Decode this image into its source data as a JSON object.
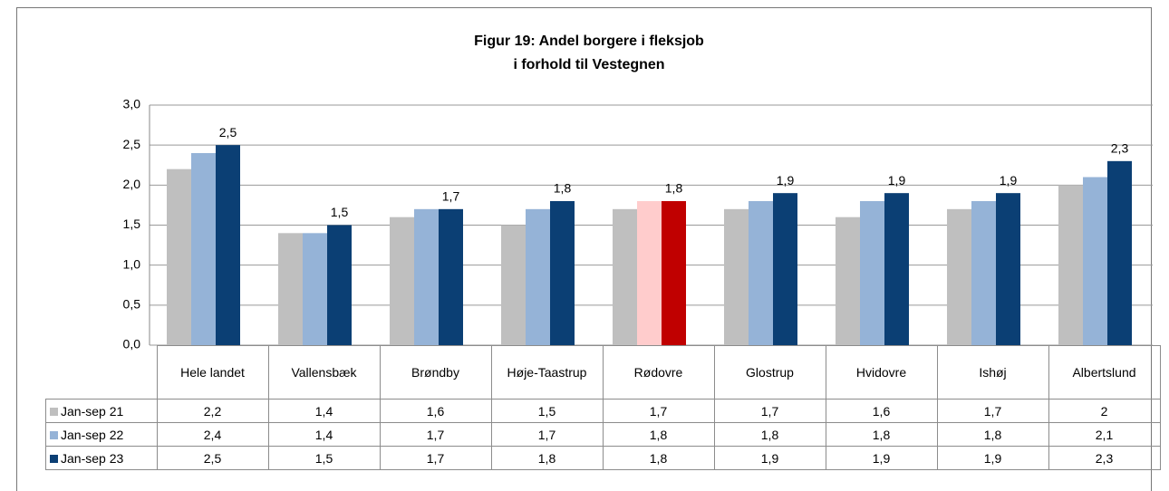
{
  "chart_data": {
    "type": "bar",
    "title_lines": [
      "Figur 19: Andel borgere i fleksjob",
      "i forhold til Vestegnen"
    ],
    "categories": [
      "Hele landet",
      "Vallensbæk",
      "Brøndby",
      "Høje-Taastrup",
      "Rødovre",
      "Glostrup",
      "Hvidovre",
      "Ishøj",
      "Albertslund"
    ],
    "series": [
      {
        "name": "Jan-sep 21",
        "color": "#bfbfbf",
        "colors": [
          "#bfbfbf",
          "#bfbfbf",
          "#bfbfbf",
          "#bfbfbf",
          "#bfbfbf",
          "#bfbfbf",
          "#bfbfbf",
          "#bfbfbf",
          "#bfbfbf"
        ],
        "values": [
          2.2,
          1.4,
          1.6,
          1.5,
          1.7,
          1.7,
          1.6,
          1.7,
          2
        ],
        "value_labels": [
          "2,2",
          "1,4",
          "1,6",
          "1,5",
          "1,7",
          "1,7",
          "1,6",
          "1,7",
          "2"
        ]
      },
      {
        "name": "Jan-sep 22",
        "color": "#95b3d7",
        "colors": [
          "#95b3d7",
          "#95b3d7",
          "#95b3d7",
          "#95b3d7",
          "#ffcccc",
          "#95b3d7",
          "#95b3d7",
          "#95b3d7",
          "#95b3d7"
        ],
        "values": [
          2.4,
          1.4,
          1.7,
          1.7,
          1.8,
          1.8,
          1.8,
          1.8,
          2.1
        ],
        "value_labels": [
          "2,4",
          "1,4",
          "1,7",
          "1,7",
          "1,8",
          "1,8",
          "1,8",
          "1,8",
          "2,1"
        ]
      },
      {
        "name": "Jan-sep 23",
        "color": "#0b3f74",
        "colors": [
          "#0b3f74",
          "#0b3f74",
          "#0b3f74",
          "#0b3f74",
          "#c00000",
          "#0b3f74",
          "#0b3f74",
          "#0b3f74",
          "#0b3f74"
        ],
        "values": [
          2.5,
          1.5,
          1.7,
          1.8,
          1.8,
          1.9,
          1.9,
          1.9,
          2.3
        ],
        "value_labels": [
          "2,5",
          "1,5",
          "1,7",
          "1,8",
          "1,8",
          "1,9",
          "1,9",
          "1,9",
          "2,3"
        ],
        "show_labels": true
      }
    ],
    "ylim": [
      0,
      3
    ],
    "yticks": [
      {
        "value": 0,
        "label": "0,0"
      },
      {
        "value": 0.5,
        "label": "0,5"
      },
      {
        "value": 1,
        "label": "1,0"
      },
      {
        "value": 1.5,
        "label": "1,5"
      },
      {
        "value": 2,
        "label": "2,0"
      },
      {
        "value": 2.5,
        "label": "2,5"
      },
      {
        "value": 3,
        "label": "3,0"
      }
    ],
    "grid": true
  }
}
